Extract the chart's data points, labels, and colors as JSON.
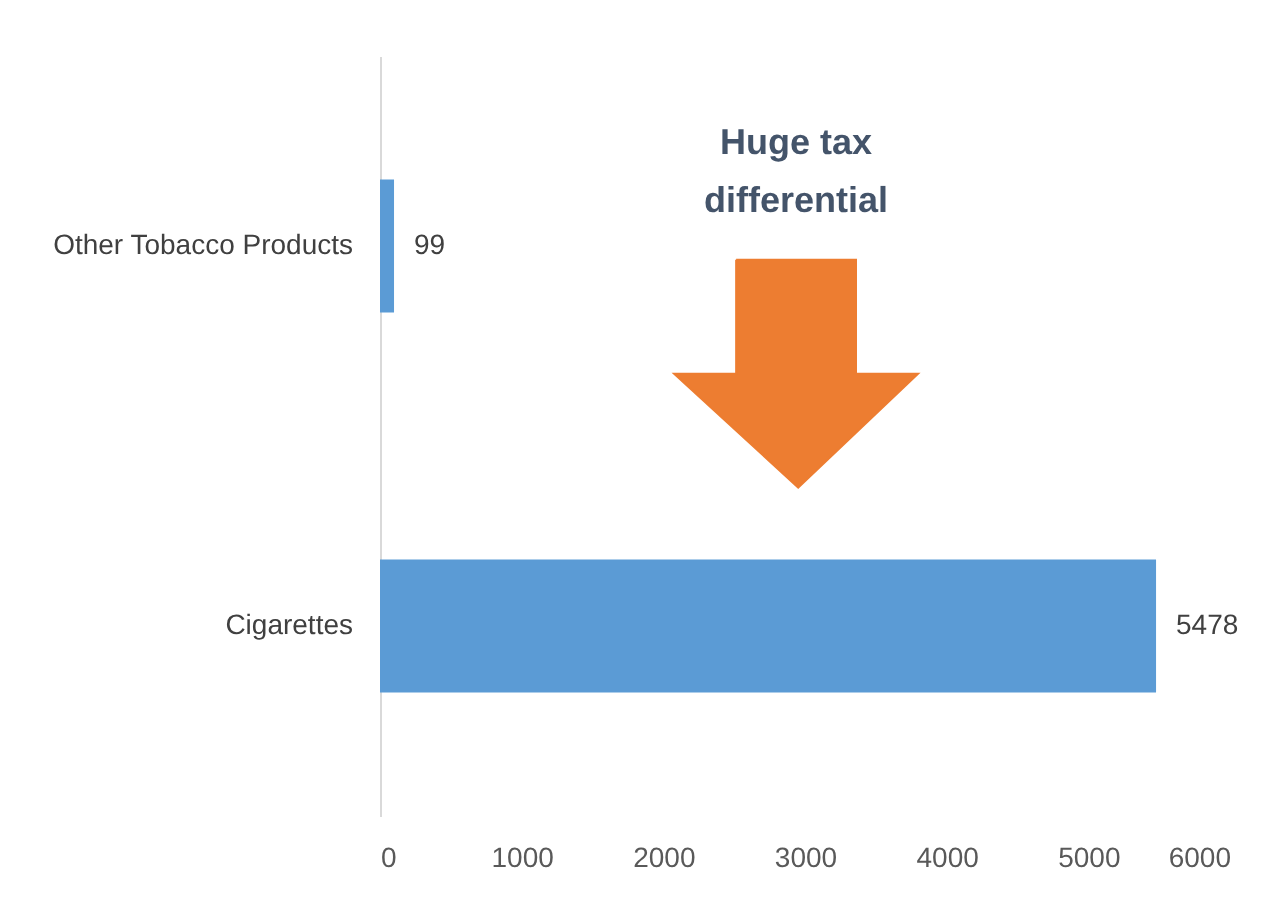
{
  "chart_data": {
    "type": "bar",
    "orientation": "horizontal",
    "categories": [
      "Other Tobacco Products",
      "Cigarettes"
    ],
    "values": [
      99,
      5478
    ],
    "color": "#5b9bd5",
    "xlim": [
      0,
      6000
    ],
    "xticks": [
      0,
      1000,
      2000,
      3000,
      4000,
      5000,
      6000
    ],
    "data_labels": true,
    "grid": false,
    "annotations": [
      "Huge tax\ndifferential"
    ]
  }
}
